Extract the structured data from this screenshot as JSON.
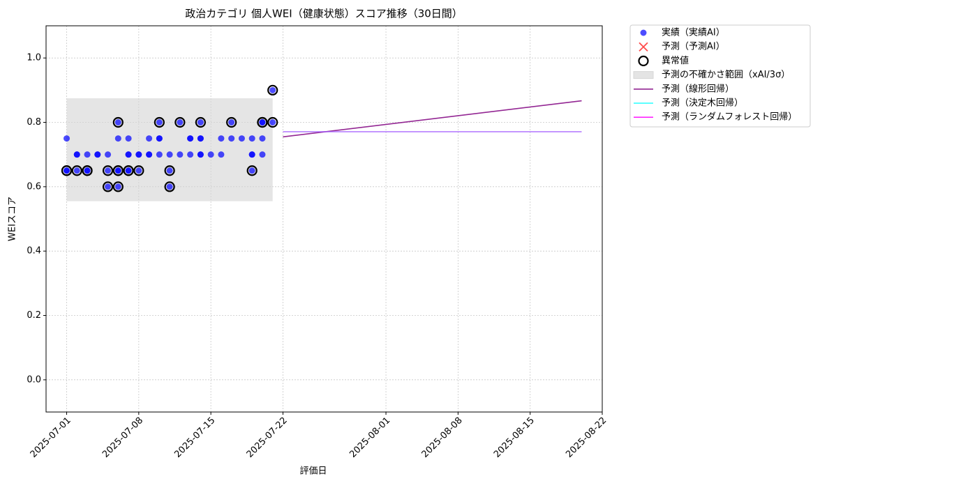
{
  "chart_data": {
    "type": "scatter",
    "title": "政治カテゴリ 個人WEI（健康状態）スコア推移（30日間）",
    "xlabel": "評価日",
    "ylabel": "WEIスコア",
    "xlim": [
      "2025-06-29",
      "2025-08-22"
    ],
    "xticks": [
      "2025-07-01",
      "2025-07-08",
      "2025-07-15",
      "2025-07-22",
      "2025-08-01",
      "2025-08-08",
      "2025-08-15",
      "2025-08-22"
    ],
    "ylim": [
      -0.1,
      1.1
    ],
    "yticks": [
      {
        "value": 0,
        "label": "0.0"
      },
      0.2,
      0.4,
      0.6,
      0.8,
      {
        "value": 1,
        "label": "1.0"
      }
    ],
    "grid": true,
    "legend": "outside upper right",
    "series": [
      {
        "name": "実績（実績AI）",
        "color": "#0000ff",
        "marker": "circle",
        "x": [
          "2025-07-01",
          "2025-07-01",
          "2025-07-01",
          "2025-07-02",
          "2025-07-02",
          "2025-07-02",
          "2025-07-03",
          "2025-07-03",
          "2025-07-03",
          "2025-07-04",
          "2025-07-04",
          "2025-07-05",
          "2025-07-05",
          "2025-07-05",
          "2025-07-06",
          "2025-07-06",
          "2025-07-06",
          "2025-07-06",
          "2025-07-06",
          "2025-07-07",
          "2025-07-07",
          "2025-07-07",
          "2025-07-07",
          "2025-07-07",
          "2025-07-08",
          "2025-07-08",
          "2025-07-08",
          "2025-07-09",
          "2025-07-09",
          "2025-07-09",
          "2025-07-10",
          "2025-07-10",
          "2025-07-10",
          "2025-07-10",
          "2025-07-11",
          "2025-07-11",
          "2025-07-11",
          "2025-07-12",
          "2025-07-12",
          "2025-07-13",
          "2025-07-13",
          "2025-07-13",
          "2025-07-14",
          "2025-07-14",
          "2025-07-14",
          "2025-07-14",
          "2025-07-14",
          "2025-07-15",
          "2025-07-16",
          "2025-07-16",
          "2025-07-17",
          "2025-07-17",
          "2025-07-18",
          "2025-07-19",
          "2025-07-19",
          "2025-07-19",
          "2025-07-19",
          "2025-07-20",
          "2025-07-20",
          "2025-07-20",
          "2025-07-20",
          "2025-07-21",
          "2025-07-21"
        ],
        "values": [
          0.65,
          0.75,
          0.65,
          0.7,
          0.65,
          0.7,
          0.65,
          0.65,
          0.7,
          0.7,
          0.7,
          0.6,
          0.65,
          0.7,
          0.65,
          0.65,
          0.6,
          0.8,
          0.75,
          0.7,
          0.75,
          0.65,
          0.7,
          0.65,
          0.65,
          0.7,
          0.7,
          0.75,
          0.7,
          0.7,
          0.75,
          0.8,
          0.75,
          0.7,
          0.6,
          0.7,
          0.65,
          0.8,
          0.7,
          0.75,
          0.7,
          0.75,
          0.7,
          0.75,
          0.7,
          0.8,
          0.75,
          0.7,
          0.75,
          0.7,
          0.8,
          0.75,
          0.75,
          0.75,
          0.7,
          0.65,
          0.7,
          0.8,
          0.75,
          0.7,
          0.8,
          0.9,
          0.8
        ]
      },
      {
        "name": "予測（予測AI）",
        "color": "#ff0000",
        "marker": "x",
        "x": [],
        "values": []
      },
      {
        "name": "異常値",
        "color": "#000000",
        "marker": "ring",
        "x": [
          "2025-07-01",
          "2025-07-01",
          "2025-07-02",
          "2025-07-03",
          "2025-07-03",
          "2025-07-05",
          "2025-07-05",
          "2025-07-06",
          "2025-07-06",
          "2025-07-06",
          "2025-07-06",
          "2025-07-07",
          "2025-07-07",
          "2025-07-08",
          "2025-07-10",
          "2025-07-11",
          "2025-07-11",
          "2025-07-12",
          "2025-07-14",
          "2025-07-17",
          "2025-07-19",
          "2025-07-20",
          "2025-07-20",
          "2025-07-21",
          "2025-07-21"
        ],
        "values": [
          0.65,
          0.65,
          0.65,
          0.65,
          0.65,
          0.6,
          0.65,
          0.65,
          0.65,
          0.6,
          0.8,
          0.65,
          0.65,
          0.65,
          0.8,
          0.6,
          0.65,
          0.8,
          0.8,
          0.8,
          0.65,
          0.8,
          0.8,
          0.9,
          0.8
        ]
      }
    ],
    "band": {
      "name": "予測の不確かさ範囲（xAI/3σ）",
      "color": "#d3d3d3",
      "x": [
        "2025-07-01",
        "2025-07-21"
      ],
      "lower": 0.555,
      "upper": 0.875
    },
    "lines": [
      {
        "name": "予測（線形回帰）",
        "color": "#800080",
        "x": [
          "2025-07-22",
          "2025-08-20"
        ],
        "values": [
          0.755,
          0.867
        ]
      },
      {
        "name": "予測（決定木回帰）",
        "color": "#00ffff",
        "x": [
          "2025-07-22",
          "2025-08-20"
        ],
        "values": [
          0.771,
          0.771
        ]
      },
      {
        "name": "予測（ランダムフォレスト回帰）",
        "color": "#ff00ff",
        "x": [
          "2025-07-22",
          "2025-08-20"
        ],
        "values": [
          0.771,
          0.771
        ]
      }
    ]
  }
}
